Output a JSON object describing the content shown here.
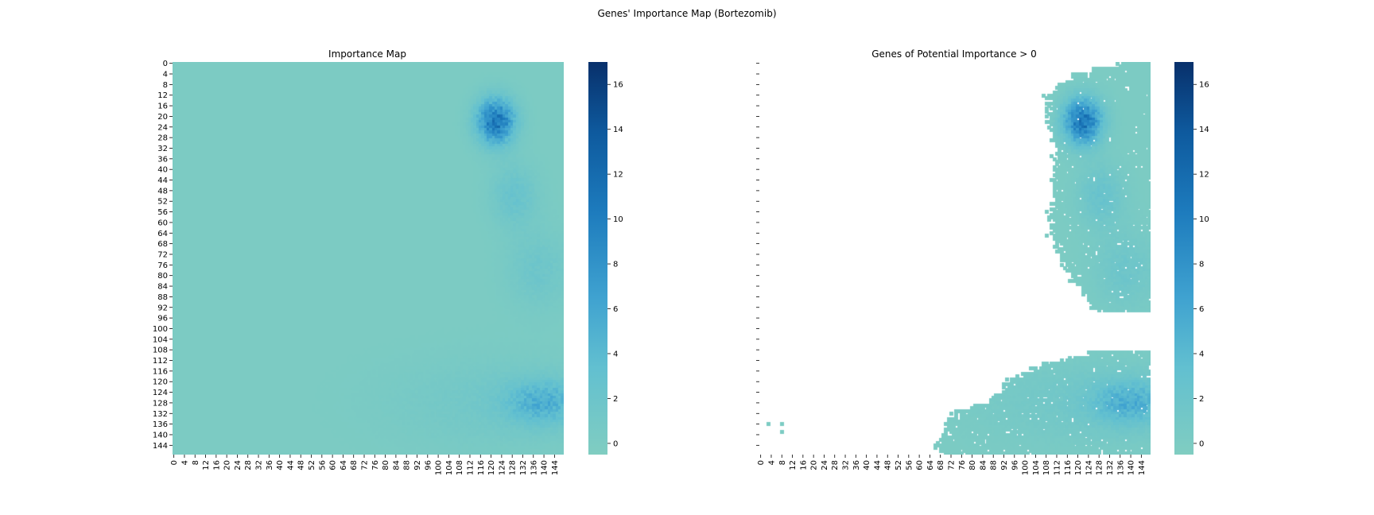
{
  "figure": {
    "suptitle": "Genes' Importance Map (Bortezomib)"
  },
  "colors": {
    "cmap_low": "#80cdc1",
    "cmap_mid": "#4eb3d3",
    "cmap_high": "#08306b",
    "background": "#ffffff",
    "missing_cells": "#ffffff"
  },
  "chart_data": [
    {
      "type": "heatmap",
      "title": "Importance Map",
      "xlabel": "",
      "ylabel": "",
      "grid_size": [
        148,
        148
      ],
      "x_ticks": [
        0,
        4,
        8,
        12,
        16,
        20,
        24,
        28,
        32,
        36,
        40,
        44,
        48,
        52,
        56,
        60,
        64,
        68,
        72,
        76,
        80,
        84,
        88,
        92,
        96,
        100,
        104,
        108,
        112,
        116,
        120,
        124,
        128,
        132,
        136,
        140,
        144
      ],
      "y_ticks": [
        0,
        4,
        8,
        12,
        16,
        20,
        24,
        28,
        32,
        36,
        40,
        44,
        48,
        52,
        56,
        60,
        64,
        68,
        72,
        76,
        80,
        84,
        88,
        92,
        96,
        100,
        104,
        108,
        112,
        116,
        120,
        124,
        128,
        132,
        136,
        140,
        144
      ],
      "y_ticklabels_shown": true,
      "colorbar": {
        "vmin": -0.5,
        "vmax": 17,
        "ticks": [
          0,
          2,
          4,
          6,
          8,
          10,
          12,
          14,
          16
        ]
      },
      "background_value": 0,
      "regions": [
        {
          "center": [
            122,
            22
          ],
          "spread": [
            5,
            6
          ],
          "peak": 11,
          "note": "strong hotspot"
        },
        {
          "center": [
            129,
            50
          ],
          "spread": [
            6,
            8
          ],
          "peak": 2.5
        },
        {
          "center": [
            138,
            78
          ],
          "spread": [
            8,
            10
          ],
          "peak": 1.8
        },
        {
          "center": [
            140,
            128
          ],
          "spread": [
            10,
            6
          ],
          "peak": 4.5
        },
        {
          "center": [
            120,
            128
          ],
          "spread": [
            28,
            12
          ],
          "peak": 1.2
        }
      ],
      "masked": false
    },
    {
      "type": "heatmap",
      "title": "Genes of Potential Importance > 0",
      "xlabel": "",
      "ylabel": "",
      "grid_size": [
        148,
        148
      ],
      "x_ticks": [
        0,
        4,
        8,
        12,
        16,
        20,
        24,
        28,
        32,
        36,
        40,
        44,
        48,
        52,
        56,
        60,
        64,
        68,
        72,
        76,
        80,
        84,
        88,
        92,
        96,
        100,
        104,
        108,
        112,
        116,
        120,
        124,
        128,
        132,
        136,
        140,
        144
      ],
      "y_ticks": [
        0,
        4,
        8,
        12,
        16,
        20,
        24,
        28,
        32,
        36,
        40,
        44,
        48,
        52,
        56,
        60,
        64,
        68,
        72,
        76,
        80,
        84,
        88,
        92,
        96,
        100,
        104,
        108,
        112,
        116,
        120,
        124,
        128,
        132,
        136,
        140,
        144
      ],
      "y_ticklabels_shown": false,
      "colorbar": {
        "vmin": -0.5,
        "vmax": 17,
        "ticks": [
          0,
          2,
          4,
          6,
          8,
          10,
          12,
          14,
          16
        ]
      },
      "background_value": 0,
      "regions": [
        {
          "center": [
            122,
            22
          ],
          "spread": [
            5,
            6
          ],
          "peak": 11,
          "note": "strong hotspot"
        },
        {
          "center": [
            129,
            50
          ],
          "spread": [
            6,
            8
          ],
          "peak": 2.5
        },
        {
          "center": [
            138,
            78
          ],
          "spread": [
            8,
            10
          ],
          "peak": 1.8
        },
        {
          "center": [
            140,
            128
          ],
          "spread": [
            10,
            6
          ],
          "peak": 4.5
        },
        {
          "center": [
            120,
            128
          ],
          "spread": [
            28,
            12
          ],
          "peak": 1.2
        }
      ],
      "masked": true,
      "visible_mask": {
        "upper_block": {
          "rows": [
            0,
            93
          ],
          "col_start_by_row": [
            [
              0,
              136
            ],
            [
              2,
              126
            ],
            [
              4,
              118
            ],
            [
              8,
              112
            ],
            [
              12,
              108
            ],
            [
              14,
              109
            ],
            [
              24,
              110
            ],
            [
              30,
              112
            ],
            [
              40,
              111
            ],
            [
              56,
              110
            ],
            [
              66,
              112
            ],
            [
              72,
              114
            ],
            [
              76,
              116
            ],
            [
              80,
              119
            ],
            [
              84,
              122
            ],
            [
              88,
              124
            ],
            [
              91,
              126
            ],
            [
              93,
              128
            ]
          ],
          "col_end": 147
        },
        "lower_block": {
          "rows": [
            109,
            147
          ],
          "col_start_by_row": [
            [
              109,
              124
            ],
            [
              111,
              116
            ],
            [
              113,
              108
            ],
            [
              115,
              103
            ],
            [
              117,
              99
            ],
            [
              119,
              95
            ],
            [
              121,
              93
            ],
            [
              123,
              91
            ],
            [
              125,
              89
            ],
            [
              127,
              86
            ],
            [
              129,
              80
            ],
            [
              131,
              74
            ],
            [
              134,
              71
            ],
            [
              138,
              70
            ],
            [
              141,
              68
            ],
            [
              144,
              66
            ],
            [
              146,
              68
            ],
            [
              147,
              70
            ]
          ],
          "col_end": 147
        },
        "isolated_cells": [
          [
            3,
            136
          ],
          [
            8,
            136
          ],
          [
            8,
            139
          ]
        ]
      }
    }
  ]
}
